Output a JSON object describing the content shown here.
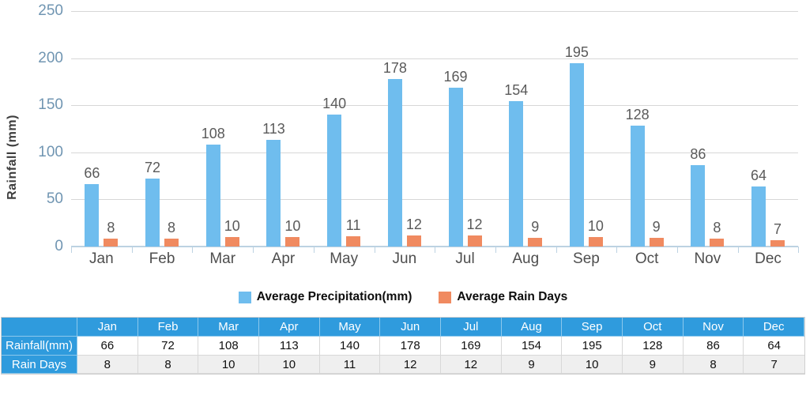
{
  "chart_data": {
    "type": "bar",
    "title": "",
    "categories": [
      "Jan",
      "Feb",
      "Mar",
      "Apr",
      "May",
      "Jun",
      "Jul",
      "Aug",
      "Sep",
      "Oct",
      "Nov",
      "Dec"
    ],
    "series": [
      {
        "name": "Average Precipitation(mm)",
        "color": "#6FBDEE",
        "values": [
          66,
          72,
          108,
          113,
          140,
          178,
          169,
          154,
          195,
          128,
          86,
          64
        ]
      },
      {
        "name": "Average Rain Days",
        "color": "#F08A60",
        "values": [
          8,
          8,
          10,
          10,
          11,
          12,
          12,
          9,
          10,
          9,
          8,
          7
        ]
      }
    ],
    "xlabel": "",
    "ylabel": "Rainfall (mm)",
    "ylim": [
      0,
      250
    ],
    "yticks": [
      0,
      50,
      100,
      150,
      200,
      250
    ],
    "grid": true,
    "bar_value_labels": true,
    "legend_position": "bottom"
  },
  "table": {
    "columns": [
      "Jan",
      "Feb",
      "Mar",
      "Apr",
      "May",
      "Jun",
      "Jul",
      "Aug",
      "Sep",
      "Oct",
      "Nov",
      "Dec"
    ],
    "rows": [
      {
        "label": "Rainfall(mm)",
        "values": [
          "66",
          "72",
          "108",
          "113",
          "140",
          "178",
          "169",
          "154",
          "195",
          "128",
          "86",
          "64"
        ]
      },
      {
        "label": "Rain Days",
        "values": [
          "8",
          "8",
          "10",
          "10",
          "11",
          "12",
          "12",
          "9",
          "10",
          "9",
          "8",
          "7"
        ]
      }
    ]
  },
  "colors": {
    "precipitation_bar": "#6FBDEE",
    "rain_days_bar": "#F08A60",
    "table_header_bg": "#2F9BDD",
    "table_header_text": "#FFFFFF",
    "table_alt_row_bg": "#EFEFEF",
    "gridline": "#D7D7D7",
    "axis_line": "#BCD2E2",
    "y_tick_label": "#7095B2",
    "value_label": "#5A5A5A",
    "month_label": "#4E4E4E"
  }
}
